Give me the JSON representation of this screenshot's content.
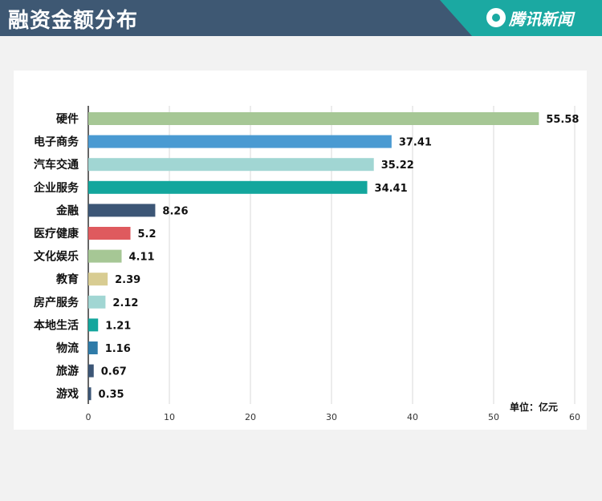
{
  "header": {
    "title": "融资金额分布",
    "brand": "腾讯新闻"
  },
  "colors": {
    "header_bg": "#3e5873",
    "brand_bg": "#1ba9a2"
  },
  "chart_data": {
    "type": "bar",
    "orientation": "horizontal",
    "categories": [
      "硬件",
      "电子商务",
      "汽车交通",
      "企业服务",
      "金融",
      "医疗健康",
      "文化娱乐",
      "教育",
      "房产服务",
      "本地生活",
      "物流",
      "旅游",
      "游戏"
    ],
    "values": [
      55.58,
      37.41,
      35.22,
      34.41,
      8.26,
      5.2,
      4.11,
      2.39,
      2.12,
      1.21,
      1.16,
      0.67,
      0.35
    ],
    "value_labels": [
      "55.58",
      "37.41",
      "35.22",
      "34.41",
      "8.26",
      "5.2",
      "4.11",
      "2.39",
      "2.12",
      "1.21",
      "1.16",
      "0.67",
      "0.35"
    ],
    "bar_colors": [
      "#a6c795",
      "#4a9ad2",
      "#a1d6d3",
      "#13a69d",
      "#3c5676",
      "#df5a5e",
      "#a6c795",
      "#d8cc92",
      "#a1d6d3",
      "#13a69d",
      "#2f7ba8",
      "#3c5676",
      "#3c5676"
    ],
    "x_ticks": [
      "0",
      "10",
      "20",
      "30",
      "40",
      "50",
      "60"
    ],
    "xlim": [
      0,
      60
    ],
    "unit": "单位：亿元",
    "grid": "vertical"
  }
}
